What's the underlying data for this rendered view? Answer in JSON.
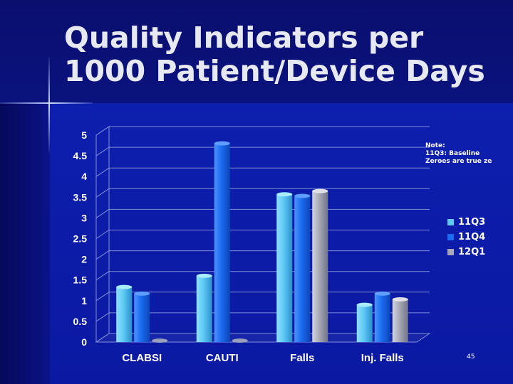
{
  "slide": {
    "title_line1": "Quality Indicators per",
    "title_line2": "1000 Patient/Device Days",
    "page_number": "45"
  },
  "note": {
    "line1": "Note:",
    "line2": "11Q3: Baseline",
    "line3": "Zeroes are true ze"
  },
  "colors": {
    "11Q3": "#5ec9f5",
    "11Q4": "#1b6cf0",
    "12Q1": "#a7a9b6"
  },
  "chart_data": {
    "type": "bar",
    "title": "",
    "xlabel": "",
    "ylabel": "",
    "categories": [
      "CLABSI",
      "CAUTI",
      "Falls",
      "Inj. Falls"
    ],
    "series": [
      {
        "name": "11Q3",
        "values": [
          1.33,
          1.6,
          3.57,
          0.9
        ]
      },
      {
        "name": "11Q4",
        "values": [
          1.17,
          4.8,
          3.53,
          1.17
        ]
      },
      {
        "name": "12Q1",
        "values": [
          0,
          0,
          3.65,
          1.03
        ]
      }
    ],
    "ylim": [
      0,
      5
    ],
    "yticks": [
      "0",
      "0.5",
      "1",
      "1.5",
      "2",
      "2.5",
      "3",
      "3.5",
      "4",
      "4.5",
      "5"
    ],
    "grid": true,
    "legend_position": "right"
  }
}
